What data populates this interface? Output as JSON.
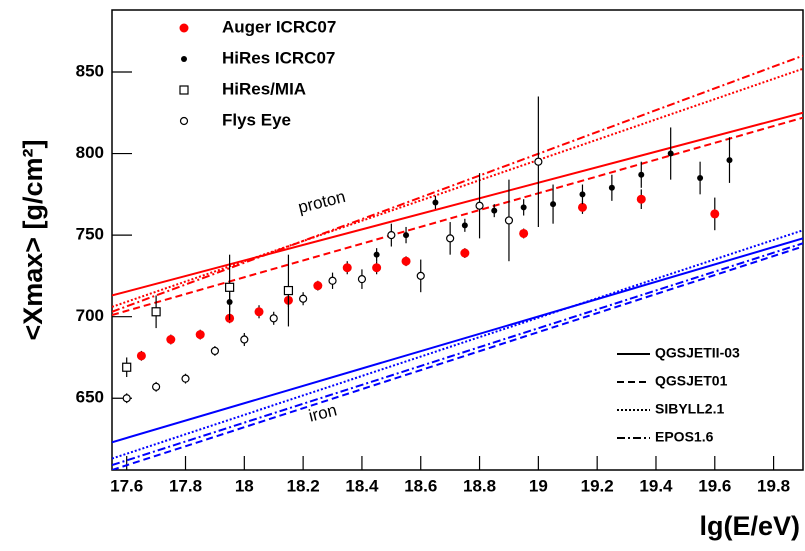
{
  "chart_data": {
    "type": "scatter",
    "x_label": "lg(E/eV)",
    "y_label": "<Xmax> [g/cm²]",
    "xlim": [
      17.55,
      19.9
    ],
    "ylim": [
      606,
      888
    ],
    "xticks": [
      17.6,
      17.8,
      18,
      18.2,
      18.4,
      18.6,
      18.8,
      19,
      19.2,
      19.4,
      19.6,
      19.8
    ],
    "yticks": [
      650,
      700,
      750,
      800,
      850
    ],
    "series": [
      {
        "name": "Auger ICRC07",
        "color": "#ff0000",
        "marker": "filled-circle",
        "x": [
          17.65,
          17.75,
          17.85,
          17.95,
          18.05,
          18.15,
          18.25,
          18.35,
          18.45,
          18.55,
          18.75,
          18.95,
          19.15,
          19.35,
          19.6
        ],
        "values": [
          676,
          686,
          689,
          699,
          703,
          710,
          719,
          730,
          730,
          734,
          739,
          751,
          767,
          772,
          763
        ],
        "errors": [
          3,
          3,
          3,
          3,
          4,
          4,
          3,
          4,
          4,
          3,
          3,
          3,
          4,
          6,
          10
        ]
      },
      {
        "name": "HiRes ICRC07",
        "color": "#000000",
        "marker": "small-dot",
        "x": [
          17.95,
          18.45,
          18.55,
          18.65,
          18.75,
          18.85,
          18.95,
          19.05,
          19.15,
          19.25,
          19.35,
          19.45,
          19.55,
          19.65
        ],
        "values": [
          709,
          738,
          750,
          770,
          756,
          765,
          767,
          769,
          775,
          779,
          787,
          800,
          785,
          796
        ],
        "errors": [
          6,
          4,
          5,
          4,
          4,
          4,
          5,
          12,
          6,
          8,
          8,
          16,
          10,
          14
        ]
      },
      {
        "name": "HiRes/MIA",
        "color": "#000000",
        "marker": "open-square",
        "x": [
          17.6,
          17.7,
          17.95,
          18.15
        ],
        "values": [
          669,
          703,
          718,
          716
        ],
        "errors": [
          6,
          10,
          20,
          22
        ]
      },
      {
        "name": "Flys Eye",
        "color": "#000000",
        "marker": "open-circle",
        "x": [
          17.6,
          17.7,
          17.8,
          17.9,
          18.0,
          18.1,
          18.2,
          18.3,
          18.4,
          18.5,
          18.6,
          18.7,
          18.8,
          18.9,
          19.0
        ],
        "values": [
          650,
          657,
          662,
          679,
          686,
          699,
          711,
          722,
          723,
          750,
          725,
          748,
          768,
          759,
          795
        ],
        "errors": [
          3,
          3,
          3,
          3,
          4,
          4,
          4,
          5,
          6,
          7,
          10,
          10,
          20,
          25,
          40
        ]
      }
    ],
    "model_x": [
      17.55,
      19.9
    ],
    "proton_label": "proton",
    "iron_label": "iron",
    "proton_color": "#ff0000",
    "iron_color": "#0000ff",
    "models": [
      {
        "name": "QGSJETII-03",
        "dash": "solid",
        "proton": [
          713,
          825
        ],
        "iron": [
          623,
          748
        ]
      },
      {
        "name": "QGSJET01",
        "dash": "dashed",
        "proton": [
          701,
          822
        ],
        "iron": [
          606,
          743
        ]
      },
      {
        "name": "SIBYLL2.1",
        "dash": "dotted",
        "proton": [
          706,
          852
        ],
        "iron": [
          613,
          753
        ]
      },
      {
        "name": "EPOS1.6",
        "dash": "dashdot",
        "proton": [
          703,
          860
        ],
        "iron": [
          609,
          745
        ]
      }
    ]
  }
}
